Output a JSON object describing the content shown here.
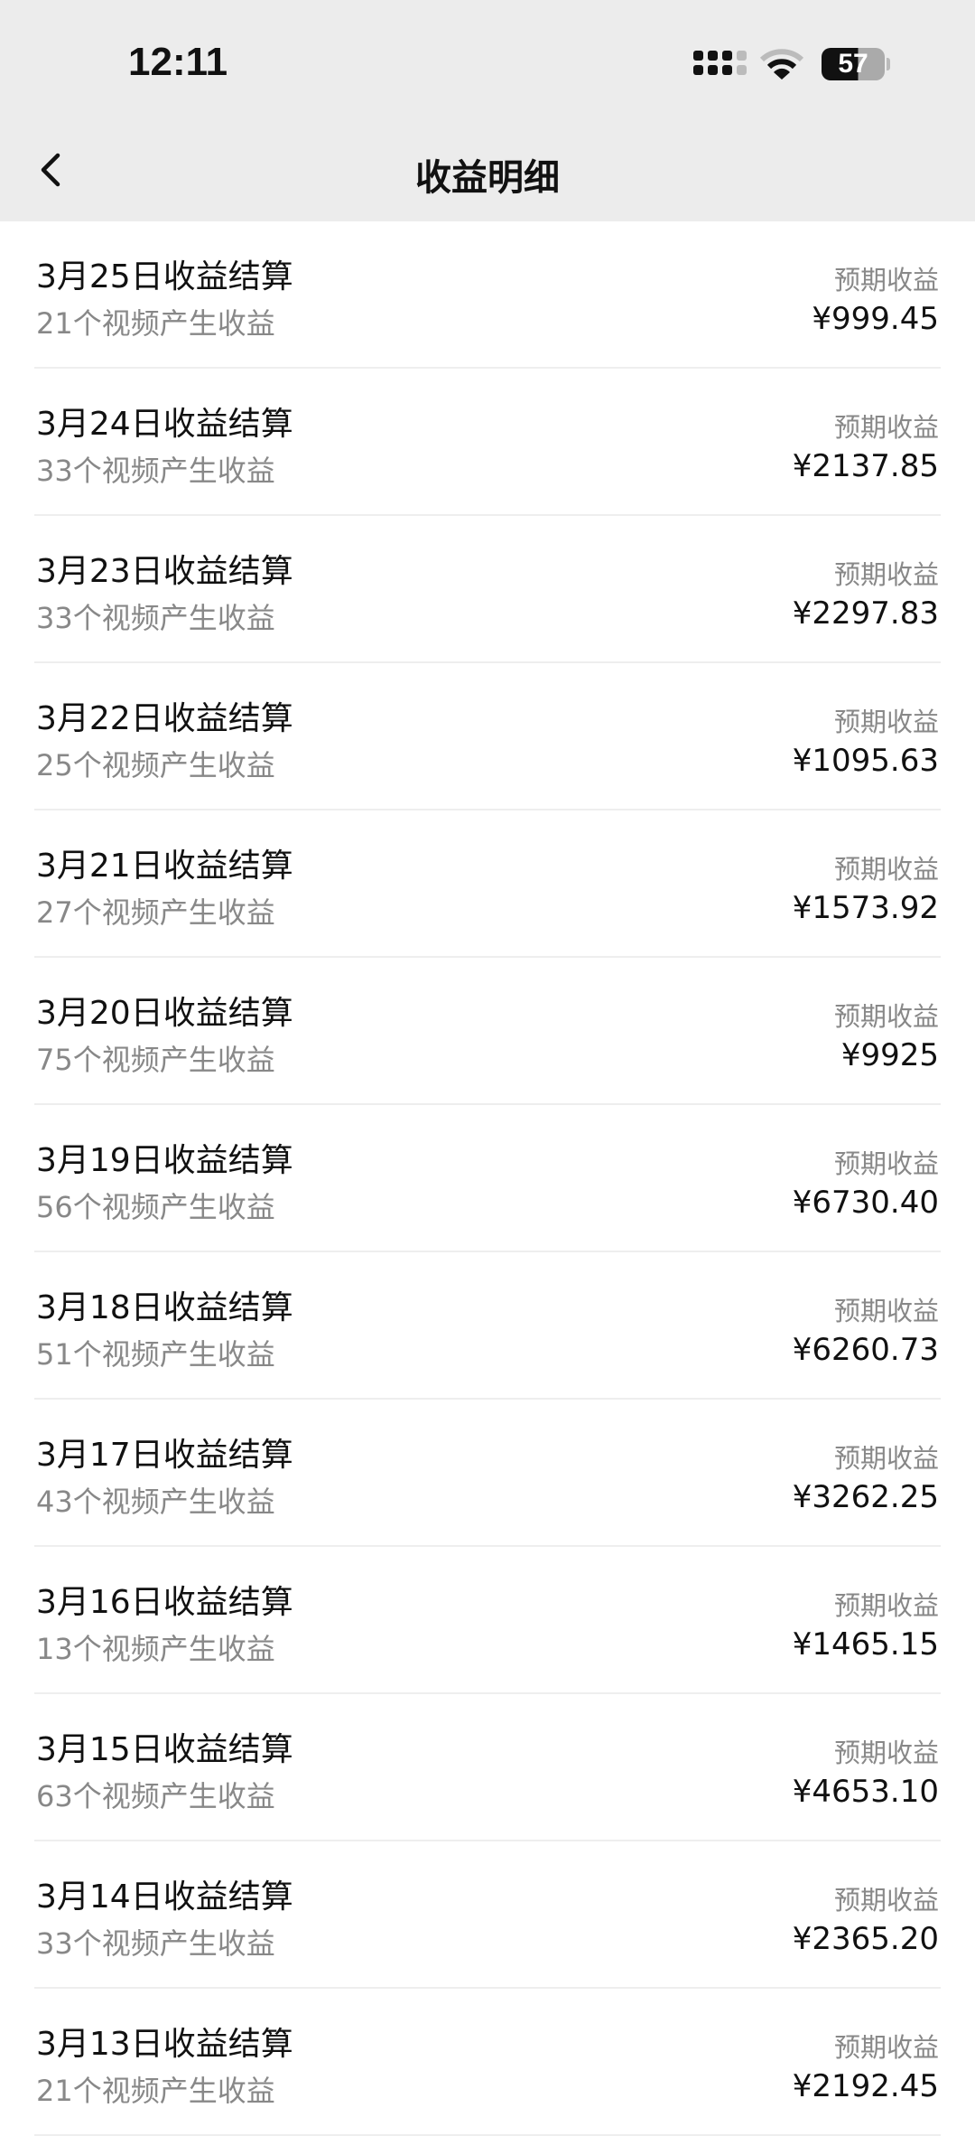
{
  "status_bar": {
    "time": "12:11",
    "battery": "57",
    "battery_level": 57
  },
  "header": {
    "title": "收益明细",
    "back_icon": "chevron-left-icon"
  },
  "items": [
    {
      "title": "3月25日收益结算",
      "subtitle": "21个视频产生收益",
      "label": "预期收益",
      "amount": "¥999.45"
    },
    {
      "title": "3月24日收益结算",
      "subtitle": "33个视频产生收益",
      "label": "预期收益",
      "amount": "¥2137.85"
    },
    {
      "title": "3月23日收益结算",
      "subtitle": "33个视频产生收益",
      "label": "预期收益",
      "amount": "¥2297.83"
    },
    {
      "title": "3月22日收益结算",
      "subtitle": "25个视频产生收益",
      "label": "预期收益",
      "amount": "¥1095.63"
    },
    {
      "title": "3月21日收益结算",
      "subtitle": "27个视频产生收益",
      "label": "预期收益",
      "amount": "¥1573.92"
    },
    {
      "title": "3月20日收益结算",
      "subtitle": "75个视频产生收益",
      "label": "预期收益",
      "amount": "¥9925"
    },
    {
      "title": "3月19日收益结算",
      "subtitle": "56个视频产生收益",
      "label": "预期收益",
      "amount": "¥6730.40"
    },
    {
      "title": "3月18日收益结算",
      "subtitle": "51个视频产生收益",
      "label": "预期收益",
      "amount": "¥6260.73"
    },
    {
      "title": "3月17日收益结算",
      "subtitle": "43个视频产生收益",
      "label": "预期收益",
      "amount": "¥3262.25"
    },
    {
      "title": "3月16日收益结算",
      "subtitle": "13个视频产生收益",
      "label": "预期收益",
      "amount": "¥1465.15"
    },
    {
      "title": "3月15日收益结算",
      "subtitle": "63个视频产生收益",
      "label": "预期收益",
      "amount": "¥4653.10"
    },
    {
      "title": "3月14日收益结算",
      "subtitle": "33个视频产生收益",
      "label": "预期收益",
      "amount": "¥2365.20"
    },
    {
      "title": "3月13日收益结算",
      "subtitle": "21个视频产生收益",
      "label": "预期收益",
      "amount": "¥2192.45"
    }
  ]
}
